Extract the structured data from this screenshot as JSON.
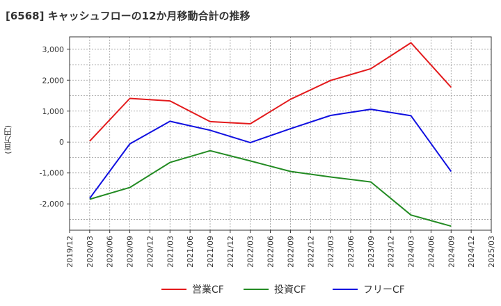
{
  "title": "[6568]  キャッシュフローの12か月移動合計の推移",
  "chart_data": {
    "type": "line",
    "title": "[6568]  キャッシュフローの12か月移動合計の推移",
    "xlabel": "",
    "ylabel": "(百万円)",
    "ylim": [
      -2850,
      3400
    ],
    "yticks": [
      3000,
      2000,
      1000,
      0,
      -1000,
      -2000
    ],
    "ytick_labels": [
      "3,000",
      "2,000",
      "1,000",
      "0",
      "-1,000",
      "-2,000"
    ],
    "categories": [
      "2019/12",
      "2020/03",
      "2020/06",
      "2020/09",
      "2020/12",
      "2021/03",
      "2021/06",
      "2021/09",
      "2021/12",
      "2022/03",
      "2022/06",
      "2022/09",
      "2022/12",
      "2023/03",
      "2023/06",
      "2023/09",
      "2023/12",
      "2024/03",
      "2024/06",
      "2024/09",
      "2024/12",
      "2025/03"
    ],
    "grid": true,
    "legend_position": "bottom",
    "series": [
      {
        "name": "営業CF",
        "color": "#e31a1c",
        "points": [
          [
            "2020/03",
            30
          ],
          [
            "2020/09",
            1410
          ],
          [
            "2021/03",
            1330
          ],
          [
            "2021/09",
            660
          ],
          [
            "2022/03",
            590
          ],
          [
            "2022/09",
            1380
          ],
          [
            "2023/03",
            1990
          ],
          [
            "2023/09",
            2370
          ],
          [
            "2024/03",
            3210
          ],
          [
            "2024/09",
            1770
          ]
        ]
      },
      {
        "name": "投資CF",
        "color": "#238b23",
        "points": [
          [
            "2020/03",
            -1850
          ],
          [
            "2020/09",
            -1470
          ],
          [
            "2021/03",
            -660
          ],
          [
            "2021/09",
            -280
          ],
          [
            "2022/03",
            -610
          ],
          [
            "2022/09",
            -950
          ],
          [
            "2023/03",
            -1130
          ],
          [
            "2023/09",
            -1290
          ],
          [
            "2024/03",
            -2360
          ],
          [
            "2024/09",
            -2720
          ]
        ]
      },
      {
        "name": "フリーCF",
        "color": "#1010e0",
        "points": [
          [
            "2020/03",
            -1820
          ],
          [
            "2020/09",
            -60
          ],
          [
            "2021/03",
            670
          ],
          [
            "2021/09",
            380
          ],
          [
            "2022/03",
            -20
          ],
          [
            "2022/09",
            430
          ],
          [
            "2023/03",
            860
          ],
          [
            "2023/09",
            1060
          ],
          [
            "2024/03",
            850
          ],
          [
            "2024/09",
            -950
          ]
        ]
      }
    ]
  }
}
